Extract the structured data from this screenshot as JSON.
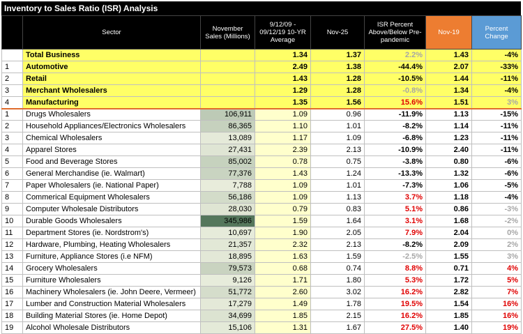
{
  "title": "Inventory to Sales Ratio (ISR) Analysis",
  "table": {
    "header": {
      "sector": "Sector",
      "sales": "November Sales (Millions)",
      "avg": "9/12/09 - 09/12/19 10-YR Average",
      "nov25": "Nov-25",
      "isr": "ISR Percent Above/Below Pre-pandemic",
      "nov19": "Nov-19",
      "change": "Percent Change"
    },
    "summary": [
      {
        "sector": "Total Business",
        "avg": "1.34",
        "nov25": "1.37",
        "isr": "2.2%",
        "nov19": "1.43",
        "change": "-4%"
      },
      {
        "index": "1",
        "sector": "Automotive",
        "avg": "2.49",
        "nov25": "1.38",
        "isr": "-44.4%",
        "nov19": "2.07",
        "change": "-33%"
      },
      {
        "index": "2",
        "sector": "Retail",
        "avg": "1.43",
        "nov25": "1.28",
        "isr": "-10.5%",
        "nov19": "1.44",
        "change": "-11%"
      },
      {
        "index": "3",
        "sector": "Merchant Wholesalers",
        "avg": "1.29",
        "nov25": "1.28",
        "isr": "-0.8%",
        "nov19": "1.34",
        "change": "-4%"
      },
      {
        "index": "4",
        "sector": "Manufacturing",
        "avg": "1.35",
        "nov25": "1.56",
        "isr": "15.6%",
        "nov19": "1.51",
        "change": "3%"
      }
    ],
    "rows": [
      {
        "index": "1",
        "sector": "Drugs Wholesalers",
        "sales": "106,911",
        "avg": "1.09",
        "nov25": "0.96",
        "isr": "-11.9%",
        "nov19": "1.13",
        "change": "-15%"
      },
      {
        "index": "2",
        "sector": "Household Appliances/Electronics Wholesalers",
        "sales": "86,365",
        "avg": "1.10",
        "nov25": "1.01",
        "isr": "-8.2%",
        "nov19": "1.14",
        "change": "-11%"
      },
      {
        "index": "3",
        "sector": "Chemical Wholesalers",
        "sales": "13,089",
        "avg": "1.17",
        "nov25": "1.09",
        "isr": "-6.8%",
        "nov19": "1.23",
        "change": "-11%"
      },
      {
        "index": "4",
        "sector": "Apparel Stores",
        "sales": "27,431",
        "avg": "2.39",
        "nov25": "2.13",
        "isr": "-10.9%",
        "nov19": "2.40",
        "change": "-11%"
      },
      {
        "index": "5",
        "sector": "Food and Beverage Stores",
        "sales": "85,002",
        "avg": "0.78",
        "nov25": "0.75",
        "isr": "-3.8%",
        "nov19": "0.80",
        "change": "-6%"
      },
      {
        "index": "6",
        "sector": "General Merchandise (ie. Walmart)",
        "sales": "77,376",
        "avg": "1.43",
        "nov25": "1.24",
        "isr": "-13.3%",
        "nov19": "1.32",
        "change": "-6%"
      },
      {
        "index": "7",
        "sector": "Paper Wholesalers (ie. National Paper)",
        "sales": "7,788",
        "avg": "1.09",
        "nov25": "1.01",
        "isr": "-7.3%",
        "nov19": "1.06",
        "change": "-5%"
      },
      {
        "index": "8",
        "sector": "Commerical Equipment Wholesalers",
        "sales": "56,186",
        "avg": "1.09",
        "nov25": "1.13",
        "isr": "3.7%",
        "nov19": "1.18",
        "change": "-4%"
      },
      {
        "index": "9",
        "sector": "Computer Wholesale Distributors",
        "sales": "28,030",
        "avg": "0.79",
        "nov25": "0.83",
        "isr": "5.1%",
        "nov19": "0.86",
        "change": "-3%"
      },
      {
        "index": "10",
        "sector": "Durable Goods Wholesalers",
        "sales": "345,986",
        "avg": "1.59",
        "nov25": "1.64",
        "isr": "3.1%",
        "nov19": "1.68",
        "change": "-2%"
      },
      {
        "index": "11",
        "sector": "Department Stores (ie. Nordstrom's)",
        "sales": "10,697",
        "avg": "1.90",
        "nov25": "2.05",
        "isr": "7.9%",
        "nov19": "2.04",
        "change": "0%"
      },
      {
        "index": "12",
        "sector": "Hardware, Plumbing, Heating Wholesalers",
        "sales": "21,357",
        "avg": "2.32",
        "nov25": "2.13",
        "isr": "-8.2%",
        "nov19": "2.09",
        "change": "2%"
      },
      {
        "index": "13",
        "sector": "Furniture, Appliance Stores (i.e NFM)",
        "sales": "18,895",
        "avg": "1.63",
        "nov25": "1.59",
        "isr": "-2.5%",
        "nov19": "1.55",
        "change": "3%"
      },
      {
        "index": "14",
        "sector": "Grocery Wholesalers",
        "sales": "79,573",
        "avg": "0.68",
        "nov25": "0.74",
        "isr": "8.8%",
        "nov19": "0.71",
        "change": "4%"
      },
      {
        "index": "15",
        "sector": "Furniture Wholesalers",
        "sales": "9,126",
        "avg": "1.71",
        "nov25": "1.80",
        "isr": "5.3%",
        "nov19": "1.72",
        "change": "5%"
      },
      {
        "index": "16",
        "sector": "Machinery Wholesalers (ie. John Deere, Vermeer)",
        "sales": "51,772",
        "avg": "2.60",
        "nov25": "3.02",
        "isr": "16.2%",
        "nov19": "2.82",
        "change": "7%"
      },
      {
        "index": "17",
        "sector": "Lumber and Construction Material Wholesalers",
        "sales": "17,279",
        "avg": "1.49",
        "nov25": "1.78",
        "isr": "19.5%",
        "nov19": "1.54",
        "change": "16%"
      },
      {
        "index": "18",
        "sector": "Building Material Stores (ie. Home Depot)",
        "sales": "34,699",
        "avg": "1.85",
        "nov25": "2.15",
        "isr": "16.2%",
        "nov19": "1.85",
        "change": "16%"
      },
      {
        "index": "19",
        "sector": "Alcohol Wholesale Distributors",
        "sales": "15,106",
        "avg": "1.31",
        "nov25": "1.67",
        "isr": "27.5%",
        "nov19": "1.40",
        "change": "19%"
      }
    ]
  }
}
